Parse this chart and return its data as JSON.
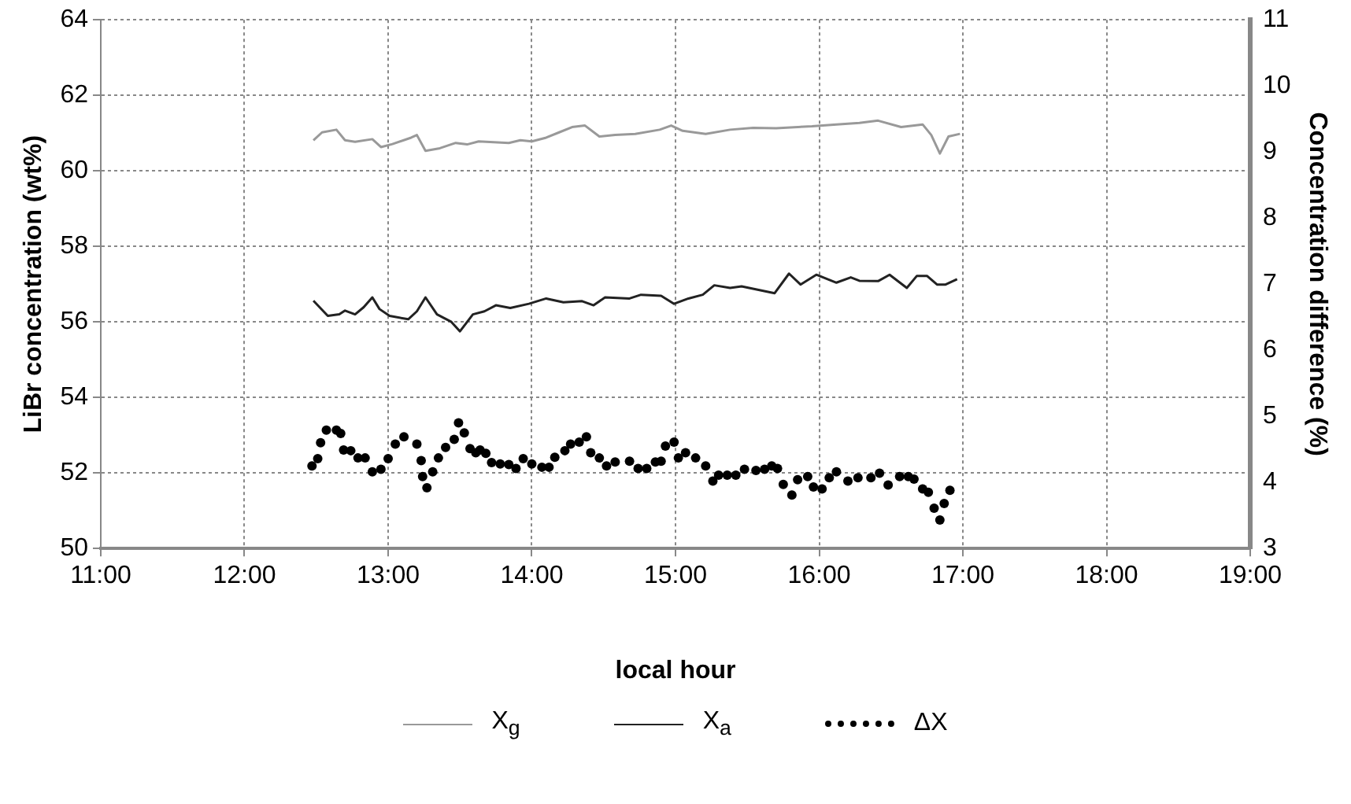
{
  "chart_data": {
    "type": "line",
    "xlabel": "local hour",
    "ylabel": "LiBr concentration (wt%)",
    "y2label": "Concentration difference (%)",
    "xlim": [
      11,
      19
    ],
    "xticks": [
      {
        "value": 11,
        "label": "11:00"
      },
      {
        "value": 12,
        "label": "12:00"
      },
      {
        "value": 13,
        "label": "13:00"
      },
      {
        "value": 14,
        "label": "14:00"
      },
      {
        "value": 15,
        "label": "15:00"
      },
      {
        "value": 16,
        "label": "16:00"
      },
      {
        "value": 17,
        "label": "17:00"
      },
      {
        "value": 18,
        "label": "18:00"
      },
      {
        "value": 19,
        "label": "19:00"
      }
    ],
    "ylim": [
      50,
      64
    ],
    "yticks": [
      50,
      52,
      54,
      56,
      58,
      60,
      62,
      64
    ],
    "y2lim": [
      3,
      11
    ],
    "y2ticks": [
      3,
      4,
      5,
      6,
      7,
      8,
      9,
      10,
      11
    ],
    "grid": true,
    "legend": "bottom",
    "series": [
      {
        "name": "X$_{g}$",
        "type": "line",
        "color": "#999999",
        "line_style": "solid",
        "marker": "none",
        "x": [
          12.48,
          12.54,
          12.64,
          12.7,
          12.77,
          12.89,
          12.95,
          13.03,
          13.16,
          13.2,
          13.26,
          13.36,
          13.47,
          13.55,
          13.63,
          13.84,
          13.92,
          14.0,
          14.1,
          14.19,
          14.28,
          14.37,
          14.47,
          14.58,
          14.72,
          14.89,
          14.97,
          15.05,
          15.21,
          15.38,
          15.54,
          15.7,
          15.95,
          16.12,
          16.28,
          16.41,
          16.57,
          16.72,
          16.78,
          16.84,
          16.9,
          16.98
        ],
        "values": [
          60.81,
          61.02,
          61.09,
          60.81,
          60.77,
          60.84,
          60.63,
          60.71,
          60.88,
          60.95,
          60.53,
          60.6,
          60.74,
          60.7,
          60.78,
          60.74,
          60.81,
          60.78,
          60.88,
          61.02,
          61.16,
          61.2,
          60.91,
          60.95,
          60.98,
          61.09,
          61.2,
          61.06,
          60.98,
          61.09,
          61.14,
          61.13,
          61.18,
          61.23,
          61.27,
          61.33,
          61.16,
          61.23,
          60.95,
          60.46,
          60.91,
          60.98
        ]
      },
      {
        "name": "X$_{a}$",
        "type": "line",
        "color": "#222222",
        "line_style": "solid",
        "marker": "none",
        "x": [
          12.48,
          12.58,
          12.66,
          12.7,
          12.77,
          12.83,
          12.89,
          12.94,
          13.01,
          13.14,
          13.2,
          13.26,
          13.34,
          13.44,
          13.5,
          13.59,
          13.67,
          13.75,
          13.85,
          13.98,
          14.1,
          14.22,
          14.35,
          14.43,
          14.51,
          14.68,
          14.76,
          14.9,
          14.99,
          15.09,
          15.19,
          15.27,
          15.38,
          15.46,
          15.69,
          15.79,
          15.87,
          15.98,
          16.12,
          16.22,
          16.28,
          16.41,
          16.49,
          16.61,
          16.68,
          16.75,
          16.82,
          16.88,
          16.96
        ],
        "values": [
          56.56,
          56.16,
          56.2,
          56.3,
          56.2,
          56.39,
          56.65,
          56.34,
          56.16,
          56.07,
          56.28,
          56.65,
          56.2,
          56.0,
          55.75,
          56.2,
          56.28,
          56.44,
          56.37,
          56.48,
          56.62,
          56.52,
          56.55,
          56.44,
          56.65,
          56.62,
          56.72,
          56.69,
          56.48,
          56.62,
          56.72,
          56.97,
          56.9,
          56.94,
          56.76,
          57.28,
          56.99,
          57.25,
          57.04,
          57.18,
          57.09,
          57.08,
          57.25,
          56.9,
          57.22,
          57.22,
          56.99,
          56.99,
          57.13
        ]
      },
      {
        "name": "ΔX",
        "type": "scatter",
        "axis": "y2",
        "color": "#000000",
        "marker": "circle",
        "x": [
          12.47,
          12.51,
          12.53,
          12.57,
          12.64,
          12.67,
          12.69,
          12.74,
          12.79,
          12.84,
          12.89,
          12.95,
          13.0,
          13.05,
          13.11,
          13.2,
          13.23,
          13.24,
          13.27,
          13.31,
          13.35,
          13.4,
          13.46,
          13.49,
          13.53,
          13.57,
          13.61,
          13.64,
          13.68,
          13.72,
          13.78,
          13.84,
          13.89,
          13.94,
          14.0,
          14.07,
          14.12,
          14.16,
          14.23,
          14.27,
          14.33,
          14.38,
          14.41,
          14.47,
          14.52,
          14.58,
          14.68,
          14.74,
          14.8,
          14.86,
          14.9,
          14.93,
          14.99,
          15.02,
          15.07,
          15.14,
          15.21,
          15.26,
          15.3,
          15.36,
          15.42,
          15.48,
          15.56,
          15.62,
          15.67,
          15.71,
          15.75,
          15.81,
          15.85,
          15.92,
          15.96,
          16.02,
          16.07,
          16.12,
          16.2,
          16.27,
          16.36,
          16.42,
          16.48,
          16.56,
          16.62,
          16.66,
          16.72,
          16.76,
          16.8,
          16.84,
          16.87,
          16.91
        ],
        "values": [
          4.25,
          4.36,
          4.6,
          4.79,
          4.79,
          4.74,
          4.49,
          4.48,
          4.37,
          4.37,
          4.16,
          4.2,
          4.36,
          4.58,
          4.69,
          4.58,
          4.33,
          4.09,
          3.92,
          4.16,
          4.37,
          4.53,
          4.65,
          4.9,
          4.75,
          4.51,
          4.45,
          4.49,
          4.44,
          4.3,
          4.28,
          4.27,
          4.21,
          4.36,
          4.28,
          4.23,
          4.23,
          4.38,
          4.48,
          4.58,
          4.61,
          4.69,
          4.45,
          4.37,
          4.25,
          4.31,
          4.32,
          4.21,
          4.21,
          4.31,
          4.32,
          4.55,
          4.61,
          4.37,
          4.45,
          4.37,
          4.25,
          4.02,
          4.11,
          4.11,
          4.11,
          4.2,
          4.18,
          4.2,
          4.25,
          4.21,
          3.97,
          3.81,
          4.04,
          4.09,
          3.93,
          3.9,
          4.07,
          4.16,
          4.02,
          4.07,
          4.07,
          4.14,
          3.96,
          4.09,
          4.09,
          4.05,
          3.9,
          3.85,
          3.61,
          3.43,
          3.68,
          3.88
        ]
      }
    ]
  }
}
